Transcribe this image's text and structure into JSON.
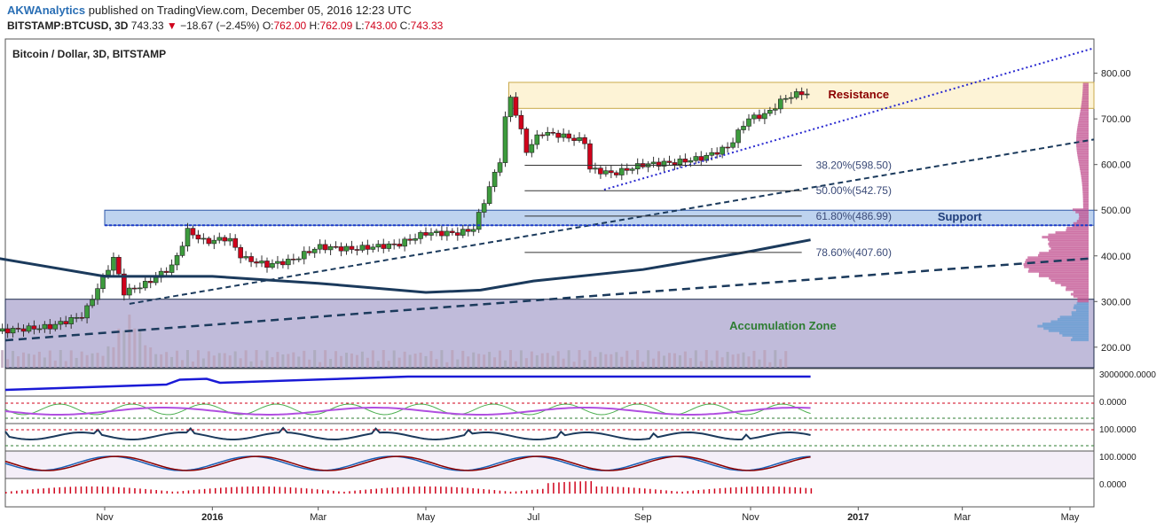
{
  "header": {
    "author": "AKWAnalytics",
    "published_text": "published on TradingView.com, December 05, 2016 12:23 UTC",
    "symbol": "BITSTAMP:BTCUSD, 3D",
    "last": "743.33",
    "change": "−18.67 (−2.45%)",
    "o_label": "O:",
    "o": "762.00",
    "h_label": "H:",
    "h": "762.09",
    "l_label": "L:",
    "l": "743.00",
    "c_label": "C:",
    "c": "743.33"
  },
  "chart_data": {
    "type": "candlestick",
    "title": "Bitcoin / Dollar, 3D, BITSTAMP",
    "y_ticks": [
      "800.00",
      "700.00",
      "600.00",
      "500.00",
      "400.00",
      "300.00",
      "200.00"
    ],
    "y_tick_values": [
      800,
      700,
      600,
      500,
      400,
      300,
      200
    ],
    "ylim": [
      155,
      875
    ],
    "x_ticks": [
      "Nov",
      "2016",
      "Mar",
      "May",
      "Jul",
      "Sep",
      "Nov",
      "2017",
      "Mar",
      "May"
    ],
    "x_tick_dates": [
      "2015-11-01",
      "2016-01-01",
      "2016-03-01",
      "2016-05-01",
      "2016-07-01",
      "2016-09-01",
      "2016-11-01",
      "2017-01-01",
      "2017-03-01",
      "2017-05-01"
    ],
    "price_anchors": [
      [
        "2015-09-01",
        235
      ],
      [
        "2015-10-01",
        245
      ],
      [
        "2015-10-20",
        270
      ],
      [
        "2015-11-01",
        360
      ],
      [
        "2015-11-06",
        395
      ],
      [
        "2015-11-12",
        320
      ],
      [
        "2015-11-25",
        340
      ],
      [
        "2015-12-10",
        380
      ],
      [
        "2015-12-18",
        455
      ],
      [
        "2015-12-28",
        430
      ],
      [
        "2016-01-10",
        440
      ],
      [
        "2016-01-18",
        395
      ],
      [
        "2016-02-01",
        380
      ],
      [
        "2016-02-15",
        390
      ],
      [
        "2016-03-01",
        420
      ],
      [
        "2016-03-20",
        415
      ],
      [
        "2016-04-15",
        425
      ],
      [
        "2016-05-01",
        450
      ],
      [
        "2016-05-20",
        450
      ],
      [
        "2016-05-28",
        460
      ],
      [
        "2016-06-05",
        540
      ],
      [
        "2016-06-12",
        610
      ],
      [
        "2016-06-17",
        760
      ],
      [
        "2016-06-22",
        700
      ],
      [
        "2016-06-27",
        630
      ],
      [
        "2016-07-05",
        670
      ],
      [
        "2016-07-15",
        665
      ],
      [
        "2016-07-30",
        650
      ],
      [
        "2016-08-02",
        590
      ],
      [
        "2016-08-15",
        580
      ],
      [
        "2016-09-01",
        600
      ],
      [
        "2016-09-20",
        605
      ],
      [
        "2016-10-05",
        615
      ],
      [
        "2016-10-20",
        640
      ],
      [
        "2016-10-30",
        700
      ],
      [
        "2016-11-10",
        710
      ],
      [
        "2016-11-20",
        745
      ],
      [
        "2016-12-02",
        760
      ],
      [
        "2016-12-05",
        743
      ]
    ],
    "indicators": {
      "sma_label": "moving average",
      "sma_anchors": [
        [
          "2015-09-01",
          395
        ],
        [
          "2015-11-01",
          355
        ],
        [
          "2016-01-01",
          355
        ],
        [
          "2016-03-01",
          340
        ],
        [
          "2016-05-01",
          320
        ],
        [
          "2016-06-01",
          325
        ],
        [
          "2016-07-01",
          345
        ],
        [
          "2016-09-01",
          370
        ],
        [
          "2016-11-01",
          410
        ],
        [
          "2016-12-05",
          435
        ]
      ]
    },
    "zones": [
      {
        "label": "Resistance",
        "from": 723,
        "to": 780,
        "x_from": "2016-06-17",
        "x_to": "2017-05-15"
      },
      {
        "label": "Support",
        "from": 467,
        "to": 500,
        "x_from": "2015-11-01",
        "x_to": "2017-05-15"
      },
      {
        "label": "Accumulation Zone",
        "from": 155,
        "to": 305,
        "x_from": "2015-09-01",
        "x_to": "2017-05-15"
      }
    ],
    "fib_levels": [
      {
        "label": "38.20%(598.50)",
        "value": 598.5
      },
      {
        "label": "50.00%(542.75)",
        "value": 542.75
      },
      {
        "label": "61.80%(486.99)",
        "value": 486.99
      },
      {
        "label": "78.60%(407.60)",
        "value": 407.6
      }
    ],
    "indicator_scales": [
      "3000000.0000",
      "0.0000",
      "100.0000",
      "100.0000",
      "0.0000"
    ]
  },
  "colors": {
    "up": "#3d9b3d",
    "down": "#d0021b",
    "resistance_fill": "#fdf1cf",
    "resistance_text": "#8b0000",
    "support_fill": "#b3cbec",
    "support_text": "#1f3d7a",
    "accum_fill": "#b9b4d6",
    "accum_text": "#2e7d32",
    "sma": "#1b3a5c",
    "fib_text": "#3a4a78",
    "trend": "#1b3a5c",
    "dotted": "#2828d0"
  }
}
